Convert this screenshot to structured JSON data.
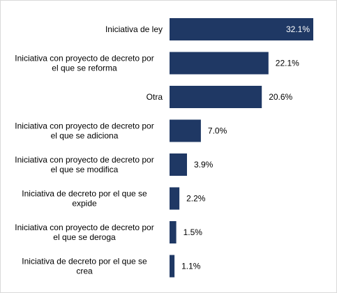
{
  "chart_data": {
    "type": "bar",
    "orientation": "horizontal",
    "categories": [
      [
        "Iniciativa de  ley"
      ],
      [
        "Iniciativa con proyecto de decreto por",
        "el que se reforma"
      ],
      [
        "Otra"
      ],
      [
        "Iniciativa con proyecto de decreto por",
        "el que se adiciona"
      ],
      [
        "Iniciativa con proyecto de decreto por",
        "el que se modifica"
      ],
      [
        "Iniciativa de decreto por el que se",
        "expide"
      ],
      [
        "Iniciativa con proyecto de decreto por",
        "el que se deroga"
      ],
      [
        "Iniciativa de decreto por el que se",
        "crea"
      ]
    ],
    "values": [
      32.1,
      22.1,
      20.6,
      7.0,
      3.9,
      2.2,
      1.5,
      1.1
    ],
    "value_labels": [
      "32.1%",
      "22.1%",
      "20.6%",
      "7.0%",
      "3.9%",
      "2.2%",
      "1.5%",
      "1.1%"
    ],
    "inside_label_index": 0,
    "xlim": [
      0,
      32.1
    ],
    "grid": false,
    "legend": "none",
    "bar_color": "#1f3864",
    "inside_label_color": "#ffffff",
    "outside_label_color": "#000000"
  }
}
